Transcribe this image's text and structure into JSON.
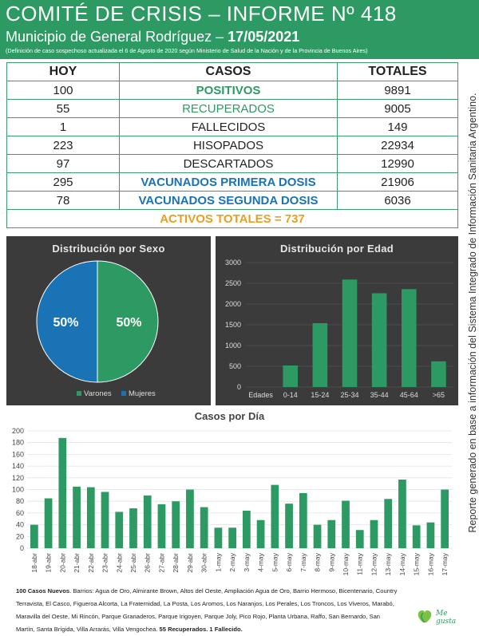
{
  "header": {
    "title": "COMITÉ DE CRISIS – INFORME Nº 418",
    "subtitle_prefix": "Municipio de General Rodríguez –",
    "subtitle_date": "17/05/2021",
    "note": "(Definición de caso sospechoso actualizada el 6 de Agosto de 2020 según Ministerio de Salud de la Nación y de la Provincia de Buenos Aires)"
  },
  "side_note": "Reporte generado en base a información del Sistema Integrado de Información Sanitaria Argentino.",
  "table": {
    "headers": [
      "HOY",
      "CASOS",
      "TOTALES"
    ],
    "rows": [
      {
        "hoy": "100",
        "casos": "POSITIVOS",
        "total": "9891"
      },
      {
        "hoy": "55",
        "casos": "RECUPERADOS",
        "total": "9005"
      },
      {
        "hoy": "1",
        "casos": "FALLECIDOS",
        "total": "149"
      },
      {
        "hoy": "223",
        "casos": "HISOPADOS",
        "total": "22934"
      },
      {
        "hoy": "97",
        "casos": "DESCARTADOS",
        "total": "12990"
      },
      {
        "hoy": "295",
        "casos": "VACUNADOS PRIMERA DOSIS",
        "total": "21906"
      },
      {
        "hoy": "78",
        "casos": "VACUNADOS SEGUNDA DOSIS",
        "total": "6036"
      }
    ],
    "activos": "ACTIVOS TOTALES = 737"
  },
  "colors": {
    "green": "#2e9a63",
    "blue": "#1a73b5",
    "orange": "#e8a020",
    "panel": "#3b3b3b"
  },
  "chart_data": [
    {
      "type": "pie",
      "title": "Distribución por Sexo",
      "categories": [
        "Varones",
        "Mujeres"
      ],
      "values": [
        50,
        50
      ],
      "labels": [
        "50%",
        "50%"
      ],
      "colors": [
        "#2e9a63",
        "#1a73b5"
      ],
      "legend": "bottom"
    },
    {
      "type": "bar",
      "title": "Distribución por Edad",
      "categories": [
        "Edades",
        "0-14",
        "15-24",
        "25-34",
        "35-44",
        "45-64",
        ">65"
      ],
      "values": [
        0,
        520,
        1540,
        2590,
        2260,
        2360,
        620
      ],
      "ylim": [
        0,
        3000
      ],
      "yticks": [
        "0",
        "500",
        "1000",
        "1500",
        "2000",
        "2500",
        "3000"
      ],
      "grid": true
    },
    {
      "type": "bar",
      "title": "Casos por Día",
      "categories": [
        "18-abr",
        "19-abr",
        "20-abr",
        "21-abr",
        "22-abr",
        "23-abr",
        "24-abr",
        "25-abr",
        "26-abr",
        "27-abr",
        "28-abr",
        "29-abr",
        "30-abr",
        "1-may",
        "2-may",
        "3-may",
        "4-may",
        "5-may",
        "6-may",
        "7-may",
        "8-may",
        "9-may",
        "10-may",
        "11-may",
        "12-may",
        "13-may",
        "14-may",
        "15-may",
        "16-may",
        "17-may"
      ],
      "values": [
        40,
        85,
        188,
        105,
        104,
        96,
        62,
        68,
        90,
        75,
        80,
        100,
        70,
        35,
        35,
        64,
        48,
        108,
        76,
        94,
        40,
        48,
        81,
        31,
        48,
        84,
        117,
        39,
        44,
        100
      ],
      "ylim": [
        0,
        200
      ],
      "yticks": [
        "0",
        "20",
        "40",
        "60",
        "80",
        "100",
        "120",
        "140",
        "160",
        "180",
        "200"
      ],
      "grid": true
    }
  ],
  "footer": {
    "bold_intro": "100 Casos Nuevos",
    "body": ". Barrios: Agua de Oro, Almirante Brown, Altos del Oeste, Ampliación Agua de Oro, Barrio Hermoso, Bicentenario, Country Terravista, El Casco, Figueroa Alcorta, La Fraternidad, La Posta, Los Aromos, Los Naranjos, Los Perales, Los Troncos, Los Viveros, Marabó, Maravilla del Oeste, Mi Rincón, Parque Granaderos, Parque Irigoyen, Parque Joly, Pico Rojo, Planta Urbana, Raffo, San Bernardo, San Martín, Santa Brígida, Villa Arrarás, Villa Vengochea. ",
    "bold_outro": "55 Recuperados. 1 Fallecido.",
    "logo_text": "Me gusta"
  }
}
